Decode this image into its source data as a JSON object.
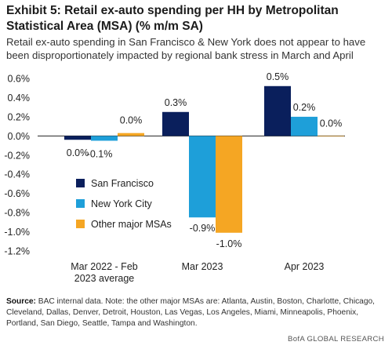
{
  "header": {
    "title": "Exhibit 5: Retail ex-auto spending per HH by Metropolitan Statistical Area (MSA) (% m/m SA)",
    "subtitle": "Retail ex-auto spending in San Francisco & New York does not appear to have been disproportionately impacted by regional bank stress in March and April"
  },
  "chart_data": {
    "type": "bar",
    "categories": [
      "Mar 2022 - Feb 2023 average",
      "Mar 2023",
      "Apr 2023"
    ],
    "category_lines": [
      [
        "Mar 2022 - Feb",
        "2023 average"
      ],
      [
        "Mar 2023"
      ],
      [
        "Apr 2023"
      ]
    ],
    "series": [
      {
        "name": "San Francisco",
        "color": "#0a1f5c",
        "values": [
          -0.04,
          0.25,
          0.52
        ],
        "labels": [
          "0.0%",
          "0.3%",
          "0.5%"
        ]
      },
      {
        "name": "New York City",
        "color": "#1e9fd9",
        "values": [
          -0.05,
          -0.85,
          0.2
        ],
        "labels": [
          "-0.1%",
          "-0.9%",
          "0.2%"
        ]
      },
      {
        "name": "Other major MSAs",
        "color": "#f5a623",
        "values": [
          0.03,
          -1.01,
          0.0
        ],
        "labels": [
          "0.0%",
          "-1.0%",
          "0.0%"
        ]
      }
    ],
    "ylim": [
      -1.2,
      0.6
    ],
    "yticks": [
      0.6,
      0.4,
      0.2,
      0.0,
      -0.2,
      -0.4,
      -0.6,
      -0.8,
      -1.0,
      -1.2
    ],
    "ytick_labels": [
      "0.6%",
      "0.4%",
      "0.2%",
      "0.0%",
      "-0.2%",
      "-0.4%",
      "-0.6%",
      "-0.8%",
      "-1.0%",
      "-1.2%"
    ],
    "legend_position": "left-middle",
    "grid": false
  },
  "source": {
    "label": "Source:",
    "text": " BAC internal data. Note: the other major MSAs are: Atlanta, Austin, Boston, Charlotte, Chicago, Cleveland, Dallas, Denver, Detroit, Houston, Las Vegas, Los Angeles, Miami, Minneapolis, Phoenix, Portland, San Diego, Seattle, Tampa and Washington."
  },
  "footer": {
    "brand": "BofA GLOBAL RESEARCH"
  }
}
